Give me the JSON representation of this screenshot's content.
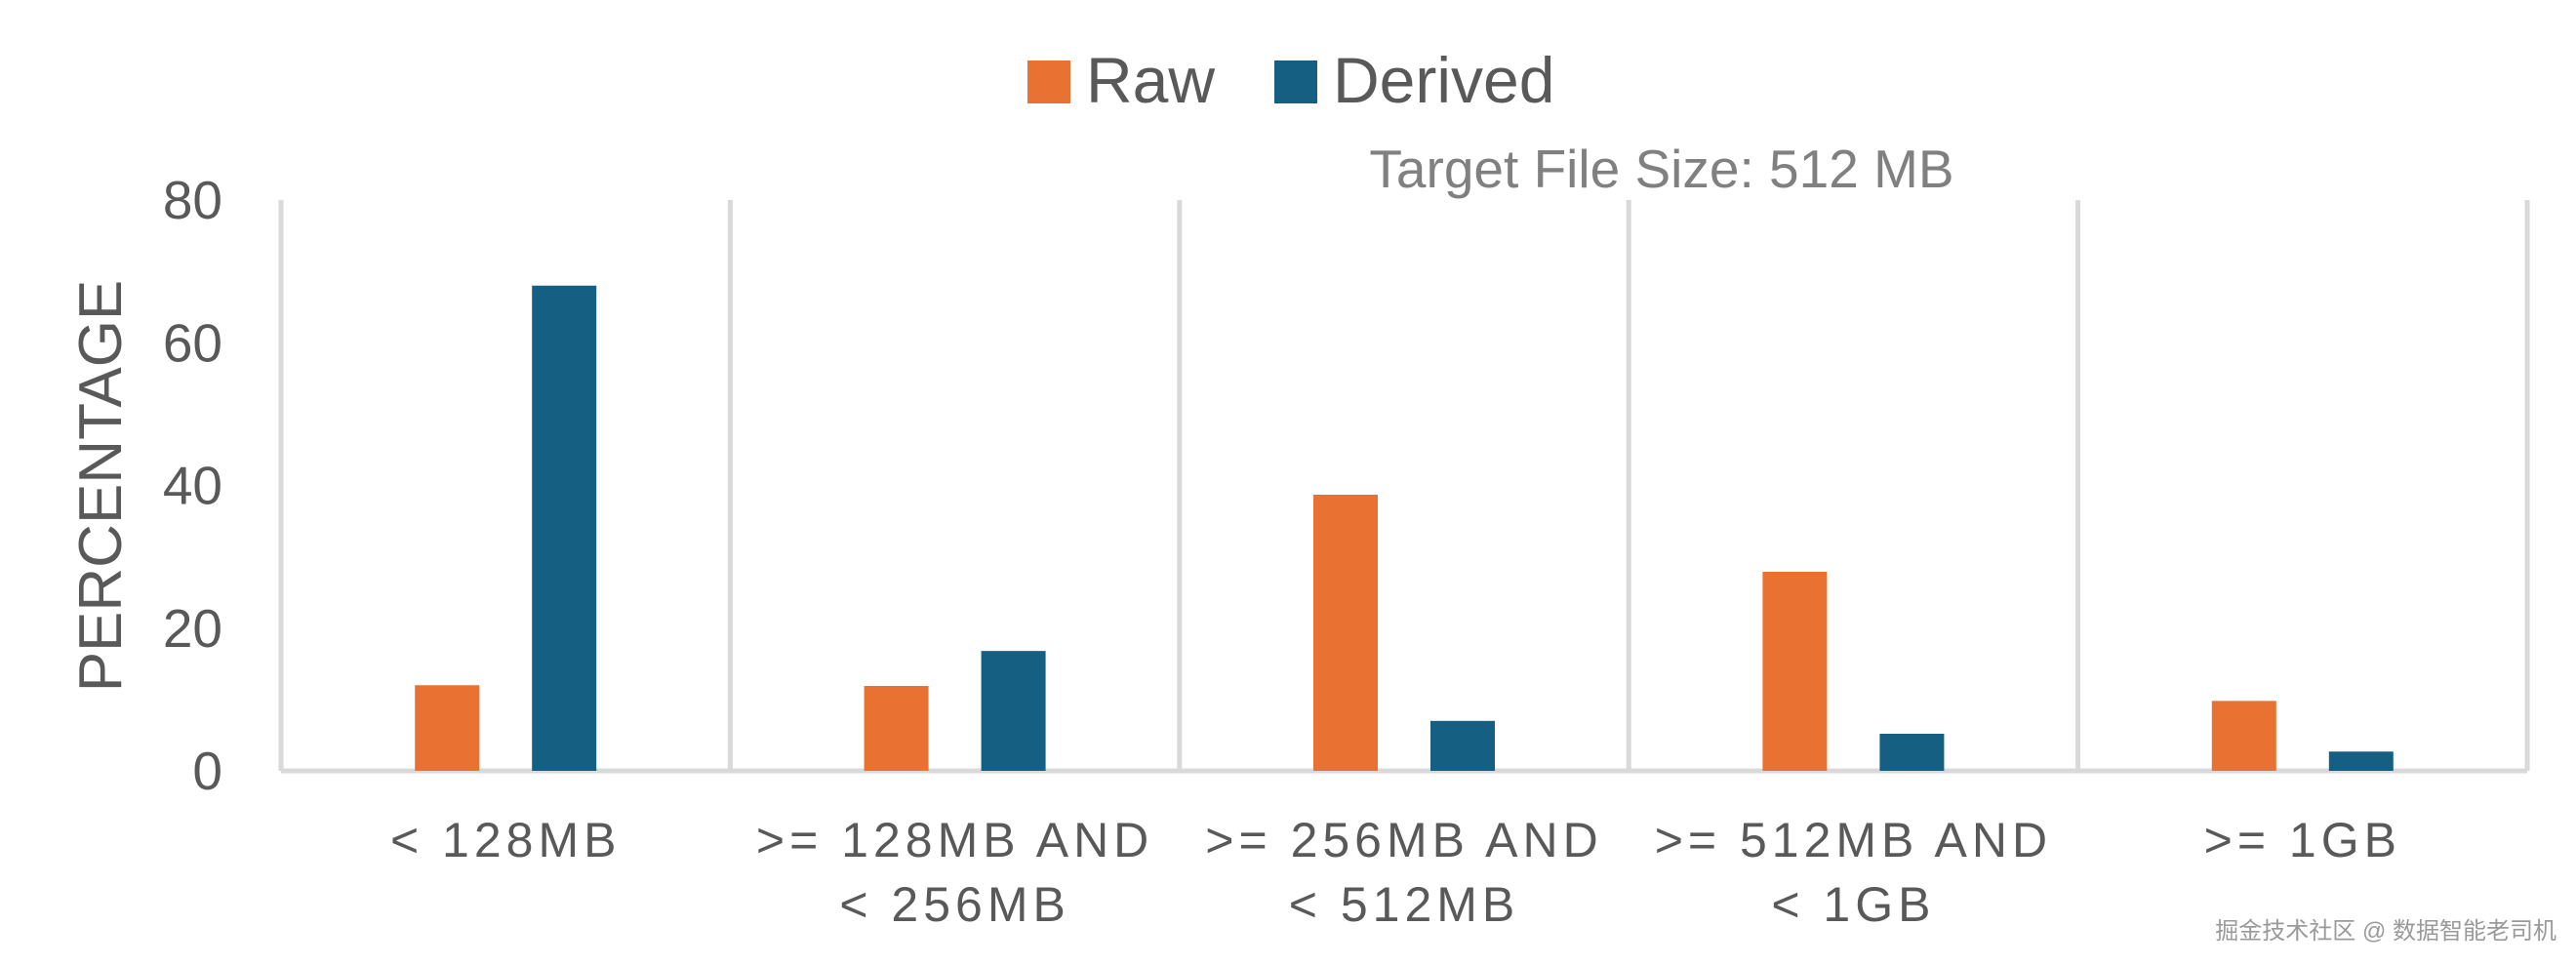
{
  "chart_data": {
    "type": "bar",
    "ylabel": "PERCENTAGE",
    "annotation": "Target File Size: 512 MB",
    "ylim": [
      0,
      80
    ],
    "yticks": [
      0,
      20,
      40,
      60,
      80
    ],
    "categories": [
      [
        "< 128MB"
      ],
      [
        ">= 128MB AND",
        "< 256MB"
      ],
      [
        ">= 256MB AND",
        "< 512MB"
      ],
      [
        ">= 512MB AND",
        "< 1GB"
      ],
      [
        ">= 1GB"
      ]
    ],
    "series": [
      {
        "name": "Raw",
        "color": "#E97132",
        "values": [
          12,
          11.9,
          38.7,
          27.9,
          9.8
        ]
      },
      {
        "name": "Derived",
        "color": "#156082",
        "values": [
          68,
          16.8,
          7,
          5.2,
          2.7
        ]
      }
    ],
    "grid": false,
    "legend": "top-center",
    "separators": true
  },
  "watermark": "掘金技术社区 @ 数据智能老司机"
}
